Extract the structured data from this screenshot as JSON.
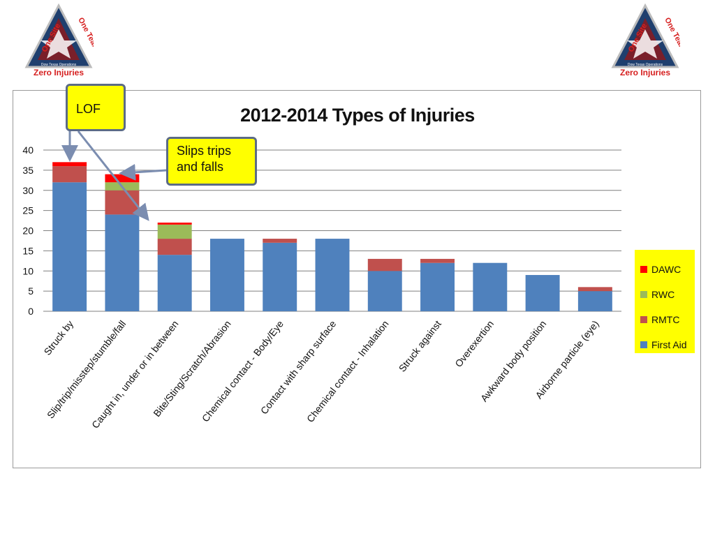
{
  "logo": {
    "line_one_site": "One Site",
    "line_one_team": "One Team",
    "line_dow": "Dow Texas Operations",
    "line_zero": "Zero Injuries"
  },
  "callouts": {
    "lof": "LOF",
    "slips_line1": "Slips trips",
    "slips_line2": "and falls"
  },
  "chart_data": {
    "type": "bar",
    "stacked": true,
    "title": "2012-2014 Types of Injuries",
    "categories": [
      "Struck by",
      "Slip/trip/misstep/stumble/fall",
      "Caught in, under or in between",
      "Bite/Sting/Scratch/Abrasion",
      "Chemical contact - Body/Eye",
      "Contact with sharp surface",
      "Chemical contact - Inhalation",
      "Struck against",
      "Overexertion",
      "Awkward body position",
      "Airborne particle (eye)"
    ],
    "series": [
      {
        "name": "First Aid",
        "color": "#4f81bd",
        "values": [
          32,
          24,
          14,
          18,
          17,
          18,
          10,
          12,
          12,
          9,
          5
        ]
      },
      {
        "name": "RMTC",
        "color": "#c0504d",
        "values": [
          4,
          6,
          4,
          0,
          1,
          0,
          3,
          1,
          0,
          0,
          1
        ]
      },
      {
        "name": "RWC",
        "color": "#9bbb59",
        "values": [
          0,
          2,
          3.5,
          0,
          0,
          0,
          0,
          0,
          0,
          0,
          0
        ]
      },
      {
        "name": "DAWC",
        "color": "#ff0000",
        "values": [
          1,
          2,
          0.5,
          0,
          0,
          0,
          0,
          0,
          0,
          0,
          0
        ]
      }
    ],
    "legend_order": [
      "DAWC",
      "RWC",
      "RMTC",
      "First Aid"
    ],
    "yticks": [
      "0",
      "5",
      "10",
      "15",
      "20",
      "25",
      "30",
      "35",
      "40"
    ],
    "ylim": [
      0,
      40
    ],
    "grid": true,
    "legend_position": "right"
  }
}
